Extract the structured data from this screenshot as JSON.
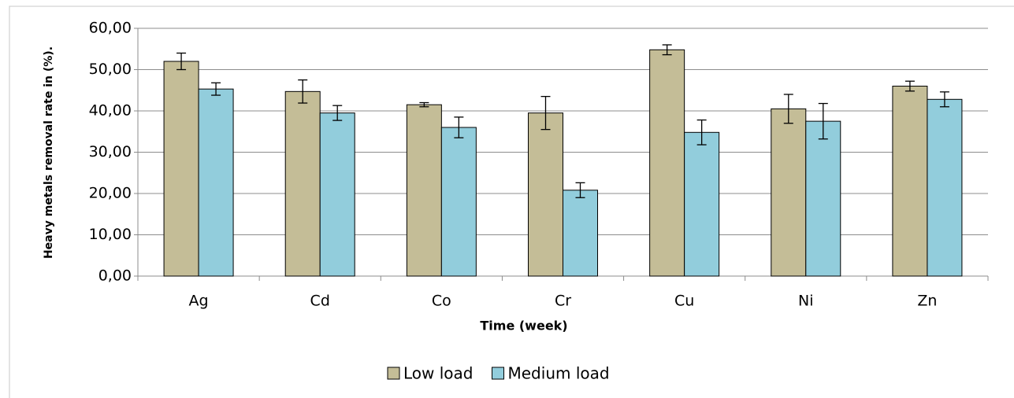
{
  "chart_data": {
    "type": "bar",
    "categories": [
      "Ag",
      "Cd",
      "Co",
      "Cr",
      "Cu",
      "Ni",
      "Zn"
    ],
    "series": [
      {
        "name": "Low load",
        "color": "#c4bd97",
        "values": [
          52.0,
          44.7,
          41.5,
          39.5,
          54.8,
          40.5,
          46.0
        ],
        "errors": [
          2.0,
          2.8,
          0.5,
          4.0,
          1.2,
          3.5,
          1.2
        ]
      },
      {
        "name": "Medium load",
        "color": "#92cddc",
        "values": [
          45.3,
          39.5,
          36.0,
          20.8,
          34.8,
          37.5,
          42.8
        ],
        "errors": [
          1.5,
          1.8,
          2.5,
          1.8,
          3.0,
          4.3,
          1.8
        ]
      }
    ],
    "xlabel": "Time (week)",
    "ylabel": "Heavy metals removal rate in (%).",
    "ylim": [
      0,
      60
    ],
    "yticks": [
      {
        "value": 0,
        "label": "0,00"
      },
      {
        "value": 10,
        "label": "10,00"
      },
      {
        "value": 20,
        "label": "20,00"
      },
      {
        "value": 30,
        "label": "30,00"
      },
      {
        "value": 40,
        "label": "40,00"
      },
      {
        "value": 50,
        "label": "50,00"
      },
      {
        "value": 60,
        "label": "60,00"
      }
    ],
    "grid": true,
    "legend": "bottom"
  }
}
